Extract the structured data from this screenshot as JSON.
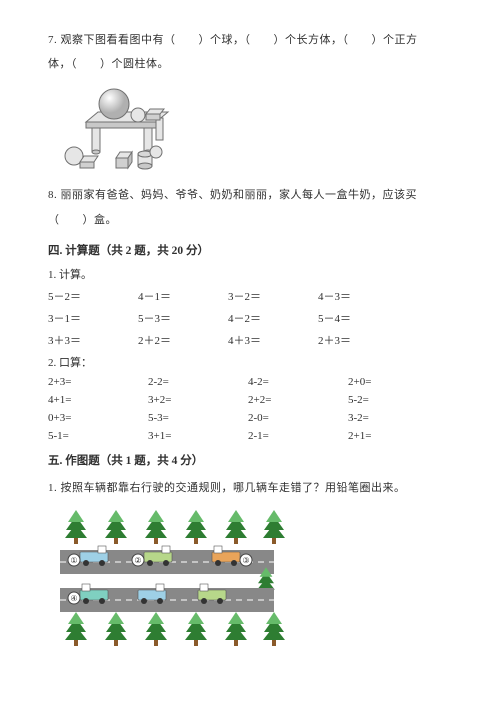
{
  "q7": {
    "line1": "7. 观察下图看看图中有（　　）个球，（　　）个长方体，（　　）个正方",
    "line2": "体，（　　）个圆柱体。"
  },
  "shapes_fig": {
    "stroke": "#707070",
    "fill_light": "#e6e6e6",
    "fill_mid": "#c8c8c8",
    "fill_dark": "#9e9e9e"
  },
  "q8": {
    "line1": "8. 丽丽家有爸爸、妈妈、爷爷、奶奶和丽丽，家人每人一盒牛奶，应该买",
    "line2": "（　　）盒。"
  },
  "sec4": {
    "title": "四. 计算题（共 2 题，共 20 分）",
    "p1": "1. 计算。",
    "rows1": [
      [
        "5－2＝",
        "4－1＝",
        "3－2＝",
        "4－3＝"
      ],
      [
        "3－1＝",
        "5－3＝",
        "4－2＝",
        "5－4＝"
      ],
      [
        "3＋3＝",
        "2＋2＝",
        "4＋3＝",
        "2＋3＝"
      ]
    ],
    "p2": "2. 口算：",
    "rows2": [
      [
        "2+3=",
        "2-2=",
        "4-2=",
        "2+0="
      ],
      [
        "4+1=",
        "3+2=",
        "2+2=",
        "5-2="
      ],
      [
        "0+3=",
        "5-3=",
        "2-0=",
        "3-2="
      ],
      [
        "5-1=",
        "3+1=",
        "2-1=",
        "2+1="
      ]
    ]
  },
  "sec5": {
    "title": "五. 作图题（共 1 题，共 4 分）",
    "p1": "1. 按照车辆都靠右行驶的交通规则，哪几辆车走错了？用铅笔圈出来。"
  },
  "traffic": {
    "tree_trunk": "#8a5a2a",
    "tree_leaf_dark": "#2e7d32",
    "tree_leaf_light": "#66bb6a",
    "road": "#888888",
    "road_line": "#ffffff",
    "label_circles": [
      "①",
      "②",
      "③",
      "④"
    ],
    "vehicles": [
      {
        "body": "#9ed0e6",
        "cab": "#ffffff",
        "wheel": "#333"
      },
      {
        "body": "#b7d78a",
        "cab": "#ffffff",
        "wheel": "#333"
      },
      {
        "body": "#e9a45a",
        "cab": "#ffffff",
        "wheel": "#333"
      },
      {
        "body": "#7fd0c0",
        "cab": "#ffffff",
        "wheel": "#333"
      },
      {
        "body": "#9ed0e6",
        "cab": "#ffffff",
        "wheel": "#333"
      },
      {
        "body": "#b7d78a",
        "cab": "#ffffff",
        "wheel": "#333"
      }
    ]
  }
}
